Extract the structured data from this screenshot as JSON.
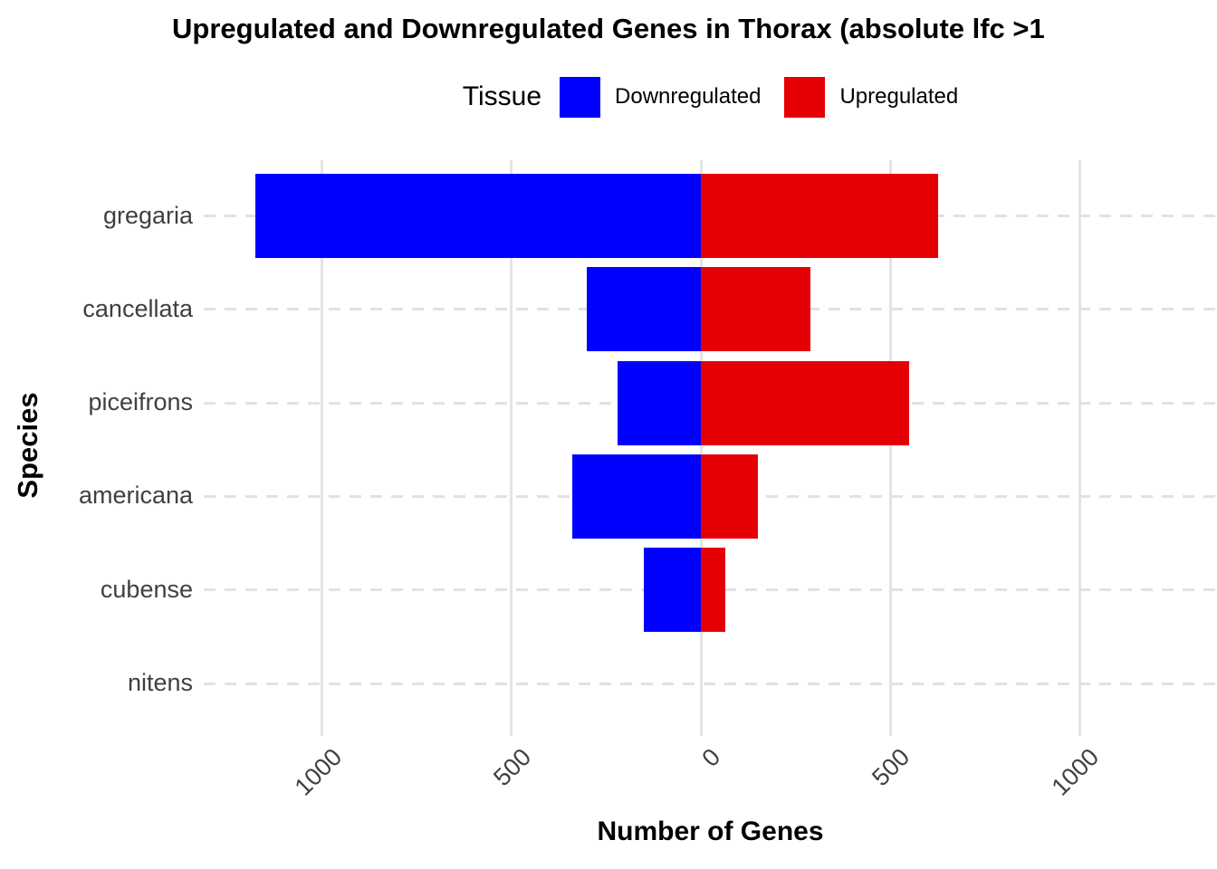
{
  "chart_data": {
    "type": "bar",
    "variant": "diverging-horizontal",
    "title": "Upregulated and Downregulated Genes in Thorax (absolute lfc >1",
    "legend_title": "Tissue",
    "xlabel": "Number of Genes",
    "ylabel": "Species",
    "categories": [
      "gregaria",
      "cancellata",
      "piceifrons",
      "americana",
      "cubense",
      "nitens"
    ],
    "series": [
      {
        "name": "Downregulated",
        "color": "#0000FF",
        "direction": "negative",
        "values": [
          1175,
          300,
          220,
          340,
          150,
          0
        ]
      },
      {
        "name": "Upregulated",
        "color": "#E50006",
        "direction": "positive",
        "values": [
          625,
          290,
          550,
          150,
          65,
          0
        ]
      }
    ],
    "x_ticks": [
      -1000,
      -500,
      0,
      500,
      1000
    ],
    "x_tick_labels": [
      "1000",
      "500",
      "0",
      "500",
      "1000"
    ],
    "xlim": [
      -1310,
      1360
    ],
    "grid": {
      "vertical": "solid",
      "horizontal": "dashed",
      "color": "#E4E4E4"
    },
    "legend_position": "top",
    "background": "#FFFFFF"
  }
}
